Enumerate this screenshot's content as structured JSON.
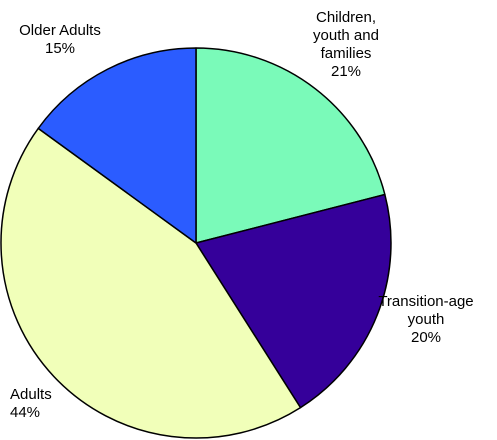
{
  "chart_data": {
    "type": "pie",
    "title": "",
    "start_angle_deg": 0,
    "direction": "clockwise",
    "outline_color": "#000000",
    "slices": [
      {
        "label": "Children, youth and families",
        "label_lines": [
          "Children,",
          "youth and",
          "families"
        ],
        "value": 21,
        "value_text": "21%",
        "color": "#7AFAB9"
      },
      {
        "label": "Transition-age youth",
        "label_lines": [
          "Transition-age",
          "youth"
        ],
        "value": 20,
        "value_text": "20%",
        "color": "#35009A"
      },
      {
        "label": "Adults",
        "label_lines": [
          "Adults"
        ],
        "value": 44,
        "value_text": "44%",
        "color": "#F1FFB9"
      },
      {
        "label": "Older Adults",
        "label_lines": [
          "Older Adults"
        ],
        "value": 15,
        "value_text": "15%",
        "color": "#2B5CFF"
      }
    ]
  }
}
